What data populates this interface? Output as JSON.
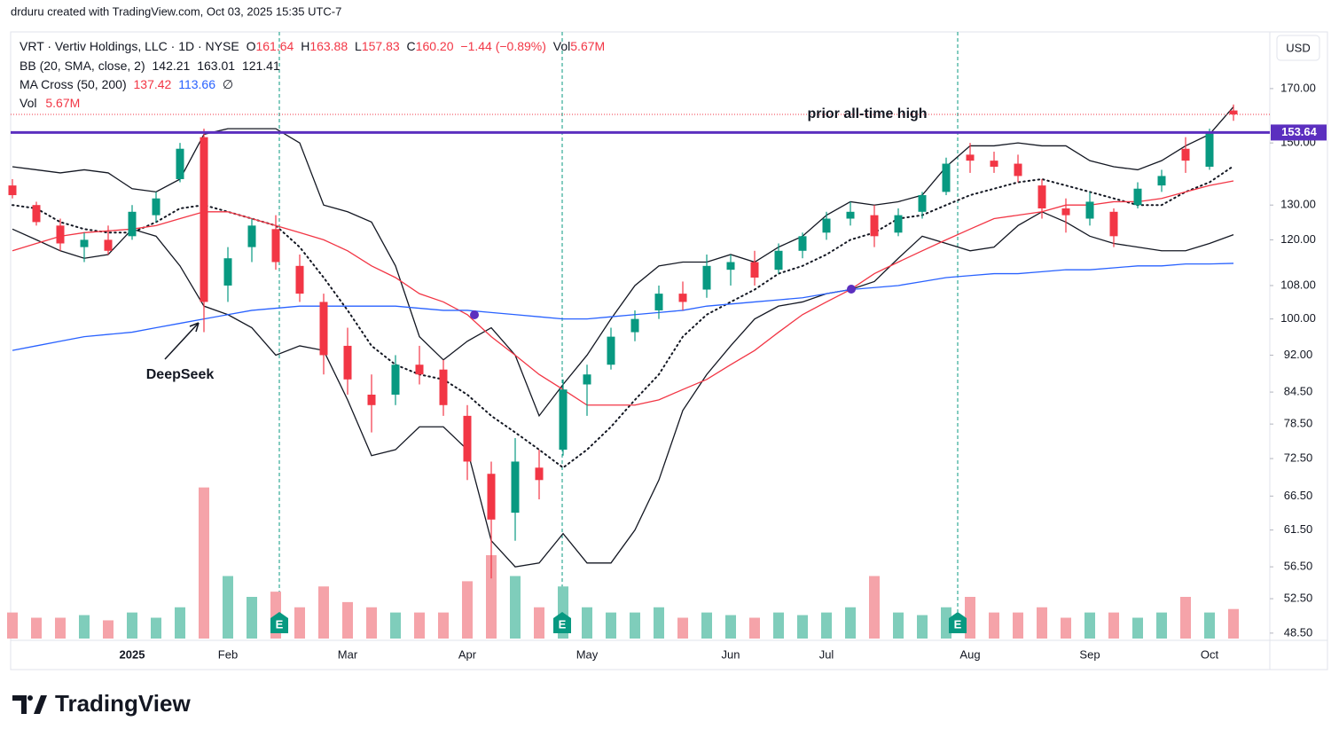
{
  "header": {
    "credit": "drduru created with TradingView.com, Oct 03, 2025 15:35 UTC-7",
    "symbol": "VRT · Vertiv Holdings, LLC · 1D · NYSE",
    "ohlc": [
      [
        "O",
        "161.64"
      ],
      [
        "H",
        "163.88"
      ],
      [
        "L",
        "157.83"
      ],
      [
        "C",
        "160.20"
      ]
    ],
    "change": "−1.44 (−0.89%)",
    "vol_label": "Vol",
    "vol": "5.67M",
    "bb_label": "BB (20, SMA, close, 2)",
    "bb_values": [
      "142.21",
      "163.01",
      "121.41"
    ],
    "ma_label": "MA Cross (50, 200)",
    "ma_values": [
      "137.42",
      "113.66"
    ],
    "ma_extra": "∅",
    "vol_pane_label": "Vol",
    "vol_pane_value": "5.67M",
    "currency": "USD",
    "logo": "TradingView"
  },
  "events": [
    "E",
    "E",
    "E"
  ],
  "chart_data": {
    "type": "candlestick",
    "log_y": true,
    "categories": [
      null,
      null,
      null,
      null,
      null,
      "2025",
      null,
      null,
      null,
      "Feb",
      null,
      null,
      null,
      null,
      "Mar",
      null,
      null,
      null,
      null,
      "Apr",
      null,
      null,
      null,
      null,
      "May",
      null,
      null,
      null,
      null,
      null,
      "Jun",
      null,
      null,
      null,
      "Jul",
      null,
      null,
      null,
      null,
      null,
      "Aug",
      null,
      null,
      null,
      null,
      "Sep",
      null,
      null,
      null,
      null,
      "Oct",
      null
    ],
    "open": [
      136,
      130,
      124,
      118,
      120,
      121,
      127,
      138,
      152,
      108,
      118,
      123,
      113,
      104,
      94,
      84,
      84,
      90,
      89,
      80,
      70,
      64,
      71,
      74,
      86,
      90,
      97,
      102,
      106,
      107,
      112,
      114,
      112,
      117,
      122,
      126,
      127,
      122,
      128,
      134,
      146,
      144,
      143,
      136,
      129,
      126,
      128,
      130,
      136,
      148,
      142,
      161.64
    ],
    "high": [
      138,
      131,
      126,
      122,
      124,
      130,
      134,
      150,
      155,
      118,
      126,
      127,
      116,
      106,
      98,
      88,
      92,
      94,
      91,
      82,
      72,
      76,
      74,
      87,
      90,
      98,
      102,
      108,
      109,
      116,
      116,
      117,
      119,
      122,
      128,
      131,
      130,
      129,
      134,
      145,
      150,
      147,
      146,
      138,
      132,
      134,
      129,
      137,
      141,
      152,
      155,
      163.88
    ],
    "low": [
      132,
      124,
      117,
      114,
      116,
      120,
      125,
      137,
      97,
      104,
      114,
      112,
      104,
      88,
      84,
      77,
      82,
      86,
      80,
      69,
      55,
      60,
      66,
      73,
      80,
      89,
      95,
      100,
      102,
      105,
      108,
      108,
      111,
      115,
      120,
      124,
      118,
      121,
      126,
      133,
      140,
      140,
      137,
      126,
      122,
      124,
      118,
      129,
      134,
      140,
      141,
      157.83
    ],
    "close": [
      133,
      125,
      119,
      120,
      117,
      128,
      132,
      148,
      104,
      115,
      124,
      114,
      106,
      92,
      87,
      82,
      90,
      88,
      82,
      72,
      63,
      72,
      69,
      85,
      88,
      96,
      100,
      106,
      104,
      113,
      114,
      110,
      117,
      121,
      126,
      128,
      121,
      127,
      133,
      143,
      144,
      142,
      139,
      129,
      127,
      131,
      121,
      135,
      139,
      144,
      154,
      160.2
    ],
    "up_color": "#089981",
    "down_color": "#f23645",
    "volume": {
      "values": [
        5,
        4,
        4,
        4.5,
        3.5,
        5,
        4,
        6,
        29,
        12,
        8,
        9,
        6,
        10,
        7,
        6,
        5,
        5,
        5,
        11,
        16,
        12,
        6,
        10,
        6,
        5,
        5,
        6,
        4,
        5,
        4.5,
        4,
        5,
        4.5,
        5,
        6,
        12,
        5,
        4.5,
        6,
        8,
        5,
        5,
        6,
        4,
        5,
        5,
        4,
        5,
        8,
        5,
        5.67
      ],
      "ylim": [
        0,
        40
      ],
      "up_color": "#7fcdbb",
      "down_color": "#f5a3a9"
    },
    "lines": [
      {
        "color": "#131722",
        "style": "solid",
        "values": [
          142,
          141,
          140,
          141,
          140,
          135,
          134,
          138,
          153,
          155,
          155,
          155,
          150,
          130,
          128,
          125,
          113,
          96,
          91,
          95,
          98,
          92,
          80,
          86,
          92,
          100,
          108,
          113,
          114,
          114,
          116,
          114,
          118,
          121,
          127,
          131,
          130,
          131,
          133,
          142,
          149,
          149,
          150,
          149,
          149,
          144,
          142,
          141,
          144,
          149,
          153,
          163.01
        ]
      },
      {
        "color": "#131722",
        "style": "dotted",
        "values": [
          130,
          129,
          125,
          123,
          122,
          122,
          125,
          129,
          130,
          128,
          126,
          124,
          118,
          110,
          102,
          94,
          90,
          88,
          87,
          84,
          80,
          77,
          74,
          71,
          74,
          78,
          83,
          88,
          96,
          101,
          104,
          107,
          111,
          113,
          116,
          120,
          122,
          126,
          127,
          130,
          133,
          135,
          137,
          138,
          136,
          134,
          132,
          130,
          130,
          134,
          137,
          142.21
        ]
      },
      {
        "color": "#131722",
        "style": "solid",
        "values": [
          123,
          120,
          117,
          115,
          116,
          123,
          121,
          113,
          103,
          101,
          98,
          92,
          94,
          93,
          83,
          73,
          74,
          78,
          78,
          74,
          60,
          56.5,
          57,
          61,
          57,
          57,
          61.5,
          69,
          81,
          88,
          94,
          100,
          103,
          104,
          106,
          107,
          109,
          115,
          121,
          119,
          117,
          118,
          124,
          128,
          125,
          121,
          119,
          118,
          117,
          117,
          119,
          121.41
        ]
      },
      {
        "color": "#f23645",
        "style": "solid",
        "values": [
          117,
          119,
          121,
          122,
          122.5,
          123,
          124,
          126,
          128,
          128,
          126,
          124,
          122,
          120,
          117,
          113,
          110,
          106,
          104,
          101,
          96,
          92,
          88,
          85,
          82,
          82,
          82,
          83,
          85,
          87,
          90,
          93,
          97,
          101,
          104,
          107,
          111,
          114,
          117,
          120,
          123,
          126,
          127,
          128,
          130,
          130,
          131,
          131,
          132,
          134,
          136,
          137.42
        ]
      },
      {
        "color": "#2962ff",
        "style": "solid",
        "values": [
          93,
          94,
          95,
          96,
          96.5,
          97,
          98,
          99,
          100,
          101,
          102,
          102.5,
          103,
          103,
          103,
          103,
          103,
          102.5,
          102,
          102,
          101.5,
          101,
          100.5,
          100,
          100,
          100.5,
          101,
          101.5,
          102,
          103,
          103.5,
          104,
          104.5,
          105,
          106,
          107,
          107.5,
          108,
          109,
          110,
          110.5,
          111,
          111,
          111.5,
          112,
          112,
          112.5,
          113,
          113,
          113.5,
          113.5,
          113.66
        ]
      }
    ],
    "ylim": [
      47.7,
      193.7
    ],
    "yticks": [
      {
        "value": 48.5,
        "label": "48.50"
      },
      {
        "value": 52.5,
        "label": "52.50"
      },
      {
        "value": 56.5,
        "label": "56.50"
      },
      {
        "value": 61.5,
        "label": "61.50"
      },
      {
        "value": 66.5,
        "label": "66.50"
      },
      {
        "value": 72.5,
        "label": "72.50"
      },
      {
        "value": 78.5,
        "label": "78.50"
      },
      {
        "value": 84.5,
        "label": "84.50"
      },
      {
        "value": 92,
        "label": "92.00"
      },
      {
        "value": 100,
        "label": "100.00"
      },
      {
        "value": 108,
        "label": "108.00"
      },
      {
        "value": 120,
        "label": "120.00"
      },
      {
        "value": 130,
        "label": "130.00"
      },
      {
        "value": 150,
        "label": "150.00"
      },
      {
        "value": 170,
        "label": "170.00"
      }
    ],
    "hline": {
      "value": 153.64,
      "color": "#5b2fbf"
    },
    "annotations": [
      "prior all-time high",
      "DeepSeek"
    ]
  }
}
